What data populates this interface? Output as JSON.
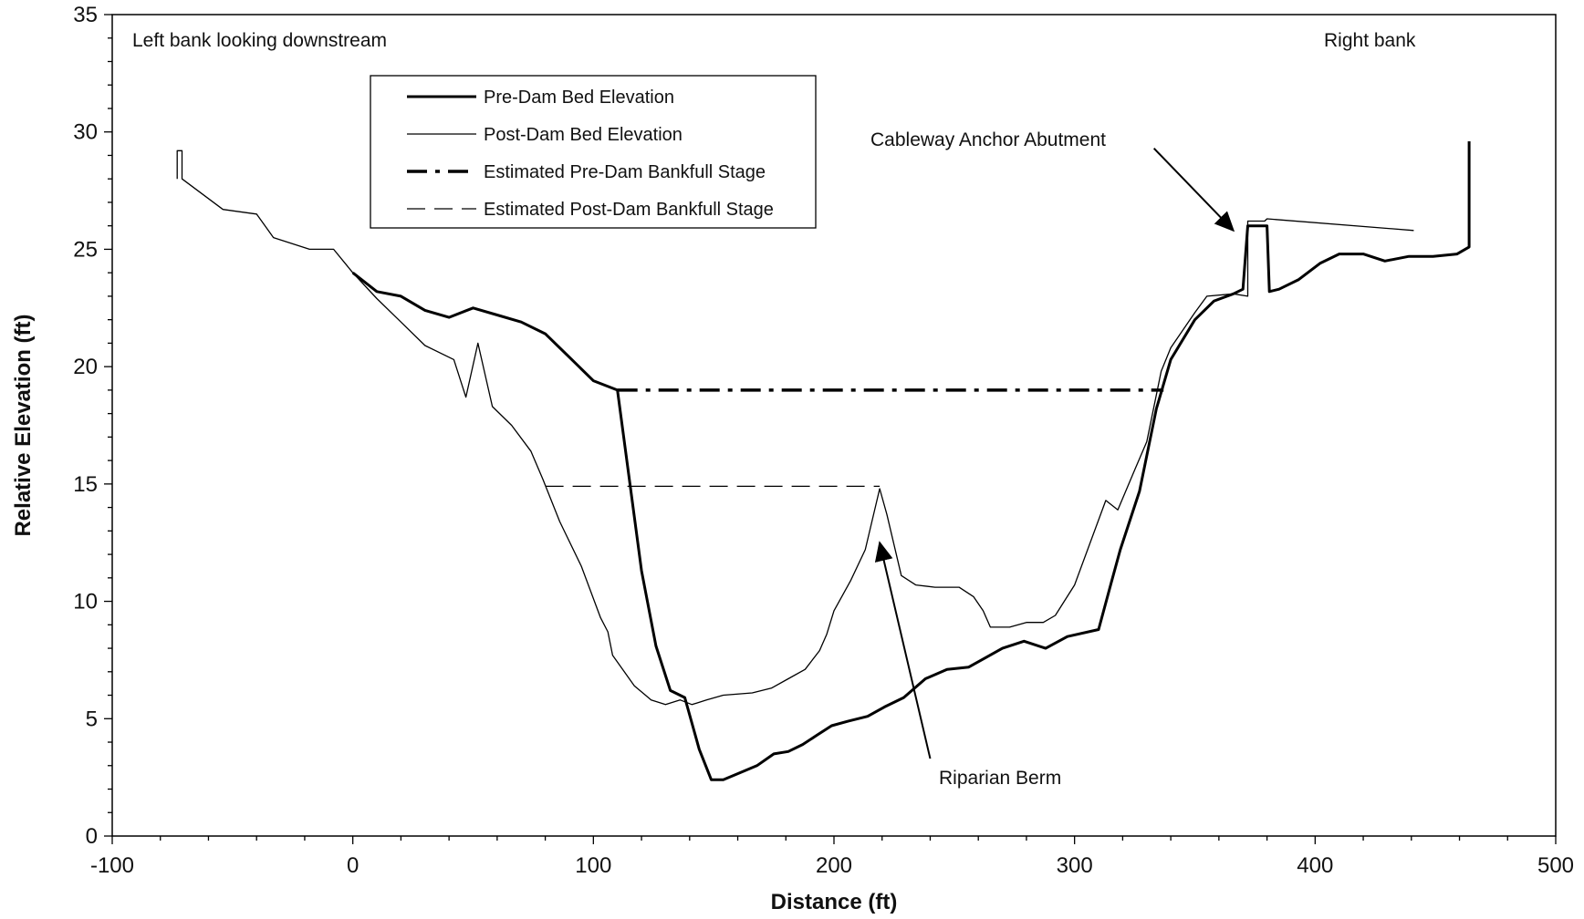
{
  "chart_data": {
    "type": "line",
    "title": "",
    "xlabel": "Distance (ft)",
    "ylabel": "Relative Elevation (ft)",
    "xlim": [
      -100,
      500
    ],
    "ylim": [
      0,
      35
    ],
    "x_ticks": [
      -100,
      0,
      100,
      200,
      300,
      400,
      500
    ],
    "y_ticks": [
      0,
      5,
      10,
      15,
      20,
      25,
      30,
      35
    ],
    "grid": false,
    "legend_position": "top-left",
    "series": [
      {
        "name": "Pre-Dam Bed Elevation",
        "style": "thick-solid",
        "points": [
          [
            0,
            24
          ],
          [
            10,
            23.2
          ],
          [
            20,
            23
          ],
          [
            30,
            22.4
          ],
          [
            40,
            22.1
          ],
          [
            50,
            22.5
          ],
          [
            60,
            22.2
          ],
          [
            70,
            21.9
          ],
          [
            80,
            21.4
          ],
          [
            90,
            20.4
          ],
          [
            100,
            19.4
          ],
          [
            110,
            19
          ],
          [
            120,
            11.3
          ],
          [
            126,
            8.1
          ],
          [
            132,
            6.2
          ],
          [
            138,
            5.9
          ],
          [
            144,
            3.7
          ],
          [
            149,
            2.4
          ],
          [
            154,
            2.4
          ],
          [
            161,
            2.7
          ],
          [
            168,
            3
          ],
          [
            175,
            3.5
          ],
          [
            181,
            3.6
          ],
          [
            187,
            3.9
          ],
          [
            193,
            4.3
          ],
          [
            199,
            4.7
          ],
          [
            206,
            4.9
          ],
          [
            214,
            5.1
          ],
          [
            221,
            5.5
          ],
          [
            229,
            5.9
          ],
          [
            238,
            6.7
          ],
          [
            247,
            7.1
          ],
          [
            256,
            7.2
          ],
          [
            263,
            7.6
          ],
          [
            270,
            8
          ],
          [
            279,
            8.3
          ],
          [
            288,
            8
          ],
          [
            297,
            8.5
          ],
          [
            310,
            8.8
          ],
          [
            315,
            10.7
          ],
          [
            319,
            12.2
          ],
          [
            327,
            14.7
          ],
          [
            334,
            18.2
          ],
          [
            340,
            20.3
          ],
          [
            350,
            22
          ],
          [
            358,
            22.8
          ],
          [
            366,
            23.1
          ],
          [
            370,
            23.3
          ],
          [
            372,
            26
          ],
          [
            380,
            26
          ],
          [
            381,
            23.2
          ],
          [
            385,
            23.3
          ],
          [
            393,
            23.7
          ],
          [
            402,
            24.4
          ],
          [
            410,
            24.8
          ],
          [
            420,
            24.8
          ],
          [
            429,
            24.5
          ],
          [
            439,
            24.7
          ],
          [
            449,
            24.7
          ],
          [
            459,
            24.8
          ],
          [
            464,
            25.1
          ],
          [
            464,
            29.6
          ]
        ]
      },
      {
        "name": "Post-Dam Bed Elevation",
        "style": "thin-solid",
        "points": [
          [
            -73,
            28
          ],
          [
            -73,
            29.2
          ],
          [
            -71,
            29.2
          ],
          [
            -71,
            28
          ],
          [
            -54,
            26.7
          ],
          [
            -40,
            26.5
          ],
          [
            -33,
            25.5
          ],
          [
            -18,
            25
          ],
          [
            -8,
            25
          ],
          [
            0,
            24
          ],
          [
            10,
            22.9
          ],
          [
            20,
            21.9
          ],
          [
            30,
            20.9
          ],
          [
            42,
            20.3
          ],
          [
            47,
            18.7
          ],
          [
            52,
            21
          ],
          [
            58,
            18.3
          ],
          [
            66,
            17.5
          ],
          [
            74,
            16.4
          ],
          [
            79,
            15.2
          ],
          [
            86,
            13.4
          ],
          [
            95,
            11.5
          ],
          [
            103,
            9.3
          ],
          [
            106,
            8.7
          ],
          [
            108,
            7.7
          ],
          [
            117,
            6.4
          ],
          [
            124,
            5.8
          ],
          [
            130,
            5.6
          ],
          [
            136,
            5.8
          ],
          [
            141,
            5.6
          ],
          [
            147,
            5.8
          ],
          [
            154,
            6
          ],
          [
            166,
            6.1
          ],
          [
            174,
            6.3
          ],
          [
            181,
            6.7
          ],
          [
            188,
            7.1
          ],
          [
            194,
            7.9
          ],
          [
            197,
            8.6
          ],
          [
            200,
            9.6
          ],
          [
            207,
            10.9
          ],
          [
            213,
            12.2
          ],
          [
            219,
            14.8
          ],
          [
            222,
            13.7
          ],
          [
            228,
            11.1
          ],
          [
            234,
            10.7
          ],
          [
            242,
            10.6
          ],
          [
            252,
            10.6
          ],
          [
            258,
            10.2
          ],
          [
            262,
            9.6
          ],
          [
            265,
            8.9
          ],
          [
            273,
            8.9
          ],
          [
            280,
            9.1
          ],
          [
            287,
            9.1
          ],
          [
            292,
            9.4
          ],
          [
            300,
            10.7
          ],
          [
            313,
            14.3
          ],
          [
            318,
            13.9
          ],
          [
            325,
            15.6
          ],
          [
            330,
            16.8
          ],
          [
            336,
            19.8
          ],
          [
            340,
            20.8
          ],
          [
            350,
            22.3
          ],
          [
            355,
            23
          ],
          [
            366,
            23.1
          ],
          [
            372,
            23
          ],
          [
            372,
            26.2
          ],
          [
            379,
            26.2
          ],
          [
            380,
            26.3
          ],
          [
            441,
            25.8
          ]
        ]
      },
      {
        "name": "Estimated Pre-Dam Bankfull Stage",
        "style": "thick-dashdot",
        "points": [
          [
            110,
            19
          ],
          [
            337,
            19
          ]
        ]
      },
      {
        "name": "Estimated Post-Dam Bankfull Stage",
        "style": "thin-dashed",
        "points": [
          [
            80,
            14.9
          ],
          [
            219,
            14.9
          ]
        ]
      }
    ],
    "annotations": [
      {
        "id": "left-bank",
        "text": "Left bank looking downstream"
      },
      {
        "id": "right-bank",
        "text": "Right bank"
      },
      {
        "id": "cableway",
        "text": "Cableway Anchor Abutment",
        "arrow_from": [
          333,
          29.3
        ],
        "arrow_to": [
          366,
          25.8
        ]
      },
      {
        "id": "berm",
        "text": "Riparian Berm",
        "arrow_from": [
          240,
          3.3
        ],
        "arrow_to": [
          219,
          12.5
        ]
      }
    ]
  }
}
